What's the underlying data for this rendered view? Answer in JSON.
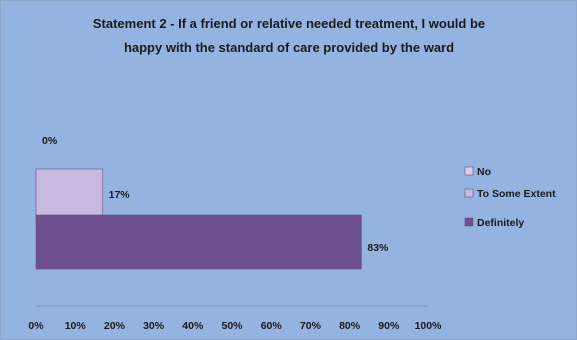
{
  "chart_data": {
    "type": "bar",
    "orientation": "horizontal",
    "title_lines": [
      "Statement 2 - If a friend or relative needed treatment, I would be",
      "happy with the standard of care provided by the ward"
    ],
    "series": [
      {
        "name": "No",
        "value": 0,
        "label": "0%",
        "color": "#d7cde8"
      },
      {
        "name": "To Some Extent",
        "value": 17,
        "label": "17%",
        "color": "#c9b8e0"
      },
      {
        "name": "Definitely",
        "value": 83,
        "label": "83%",
        "color": "#6d4e8f"
      }
    ],
    "x_ticks": [
      "0%",
      "10%",
      "20%",
      "30%",
      "40%",
      "50%",
      "60%",
      "70%",
      "80%",
      "90%",
      "100%"
    ],
    "xlim": [
      0,
      100
    ],
    "grid": false,
    "legend_position": "right",
    "background_color": "#95b3e1"
  }
}
